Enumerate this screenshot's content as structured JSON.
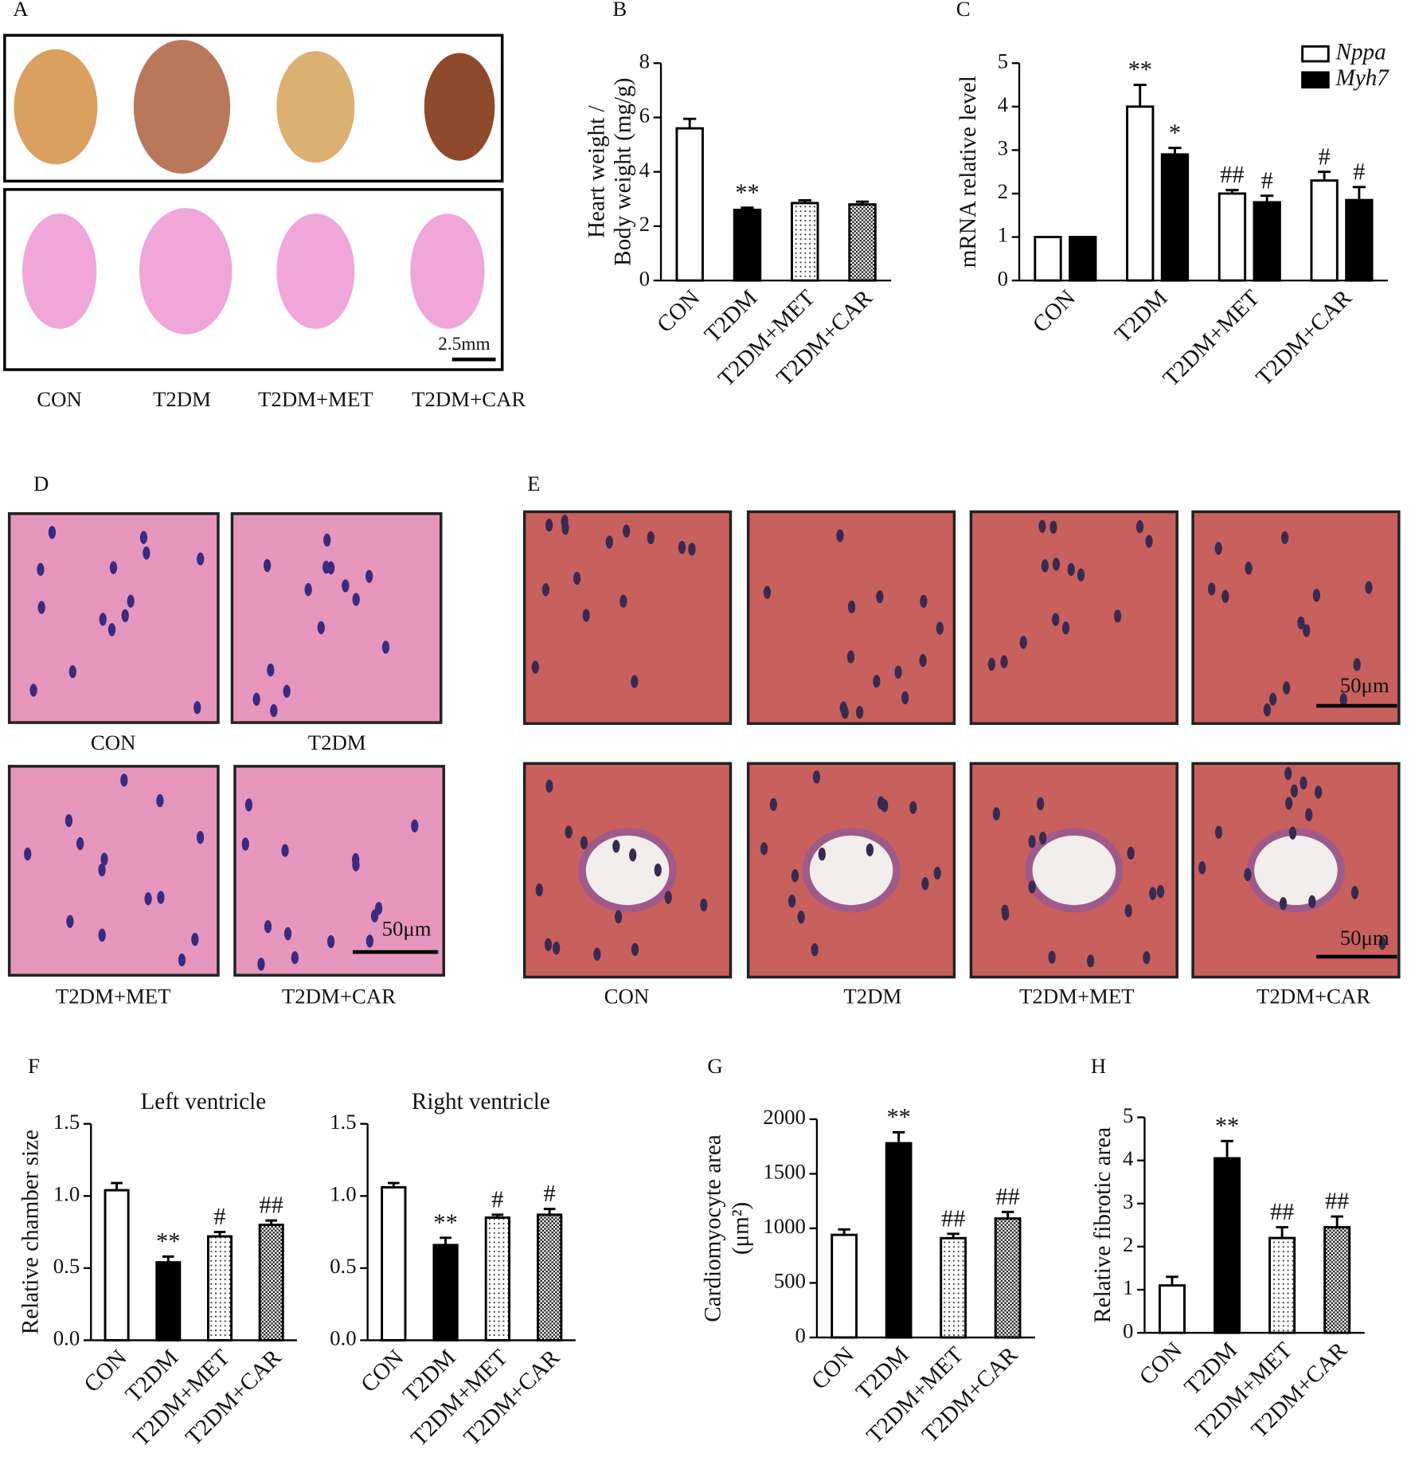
{
  "panel_labels": [
    "A",
    "B",
    "C",
    "D",
    "E",
    "F",
    "G",
    "H"
  ],
  "panels": {
    "A": {
      "captions": [
        "CON",
        "T2DM",
        "T2DM+MET",
        "T2DM+CAR"
      ],
      "scale_bar": "2.5mm"
    },
    "D": {
      "captions": [
        "CON",
        "T2DM",
        "T2DM+MET",
        "T2DM+CAR"
      ],
      "scale_bar": "50μm"
    },
    "E": {
      "captions": [
        "CON",
        "T2DM",
        "T2DM+MET",
        "T2DM+CAR"
      ],
      "scale_bars": [
        "50μm",
        "50μm"
      ]
    }
  },
  "chart_data": [
    {
      "type": "bar",
      "panel": "B",
      "ylabel": [
        "Heart weight /",
        "Body weight  (mg/g)"
      ],
      "categories": [
        "CON",
        "T2DM",
        "T2DM+MET",
        "T2DM+CAR"
      ],
      "values": [
        5.6,
        2.6,
        2.85,
        2.8
      ],
      "errors": [
        0.35,
        0.08,
        0.1,
        0.1
      ],
      "annotations": [
        null,
        "**",
        null,
        null
      ],
      "fill_styles": [
        "open",
        "solid",
        "dotted",
        "checkered"
      ],
      "ylim": [
        0,
        8
      ],
      "yticks": [
        0,
        2,
        4,
        6,
        8
      ]
    },
    {
      "type": "bar",
      "panel": "C",
      "ylabel": [
        "mRNA relative level"
      ],
      "categories": [
        "CON",
        "T2DM",
        "T2DM+MET",
        "T2DM+CAR"
      ],
      "series": [
        {
          "name": "Nppa",
          "fill_style": "open",
          "values": [
            1,
            4.0,
            2.0,
            2.3
          ],
          "errors": [
            0,
            0.5,
            0.08,
            0.2
          ],
          "annotations": [
            null,
            "**",
            "##",
            "#"
          ]
        },
        {
          "name": "Myh7",
          "fill_style": "solid",
          "values": [
            1,
            2.9,
            1.8,
            1.85
          ],
          "errors": [
            0,
            0.15,
            0.15,
            0.3
          ],
          "annotations": [
            null,
            "*",
            "#",
            "#"
          ]
        }
      ],
      "ylim": [
        0,
        5
      ],
      "yticks": [
        0,
        1,
        2,
        3,
        4,
        5
      ],
      "legend": "top-right"
    },
    {
      "type": "bar",
      "panel": "F",
      "title": "Left ventricle",
      "ylabel": [
        "Relative chamber size"
      ],
      "categories": [
        "CON",
        "T2DM",
        "T2DM+MET",
        "T2DM+CAR"
      ],
      "values": [
        1.04,
        0.54,
        0.72,
        0.8
      ],
      "errors": [
        0.05,
        0.04,
        0.03,
        0.03
      ],
      "annotations": [
        null,
        "**",
        "#",
        "##"
      ],
      "fill_styles": [
        "open",
        "solid",
        "dotted",
        "checkered"
      ],
      "ylim": [
        0,
        1.5
      ],
      "yticks": [
        {
          "value": 0,
          "label": "0.0"
        },
        0.5,
        {
          "value": 1,
          "label": "1.0"
        },
        1.5
      ]
    },
    {
      "type": "bar",
      "panel": "F",
      "title": "Right ventricle",
      "categories": [
        "CON",
        "T2DM",
        "T2DM+MET",
        "T2DM+CAR"
      ],
      "values": [
        1.06,
        0.66,
        0.85,
        0.87
      ],
      "errors": [
        0.03,
        0.05,
        0.02,
        0.04
      ],
      "annotations": [
        null,
        "**",
        "#",
        "#"
      ],
      "fill_styles": [
        "open",
        "solid",
        "dotted",
        "checkered"
      ],
      "ylim": [
        0,
        1.5
      ],
      "yticks": [
        {
          "value": 0,
          "label": "0.0"
        },
        0.5,
        {
          "value": 1,
          "label": "1.0"
        },
        1.5
      ]
    },
    {
      "type": "bar",
      "panel": "G",
      "ylabel": [
        "Cardiomyocyte area",
        "(μm²)"
      ],
      "categories": [
        "CON",
        "T2DM",
        "T2DM+MET",
        "T2DM+CAR"
      ],
      "values": [
        940,
        1780,
        910,
        1090
      ],
      "errors": [
        50,
        100,
        40,
        60
      ],
      "annotations": [
        null,
        "**",
        "##",
        "##"
      ],
      "fill_styles": [
        "open",
        "solid",
        "dotted",
        "checkered"
      ],
      "ylim": [
        0,
        2000
      ],
      "yticks": [
        0,
        500,
        1000,
        1500,
        2000
      ]
    },
    {
      "type": "bar",
      "panel": "H",
      "ylabel": [
        "Relative fibrotic area"
      ],
      "categories": [
        "CON",
        "T2DM",
        "T2DM+MET",
        "T2DM+CAR"
      ],
      "values": [
        1.1,
        4.05,
        2.2,
        2.45
      ],
      "errors": [
        0.2,
        0.4,
        0.25,
        0.25
      ],
      "annotations": [
        null,
        "**",
        "##",
        "##"
      ],
      "fill_styles": [
        "open",
        "solid",
        "dotted",
        "checkered"
      ],
      "ylim": [
        0,
        5
      ],
      "yticks": [
        0,
        1,
        2,
        3,
        4,
        5
      ]
    }
  ]
}
